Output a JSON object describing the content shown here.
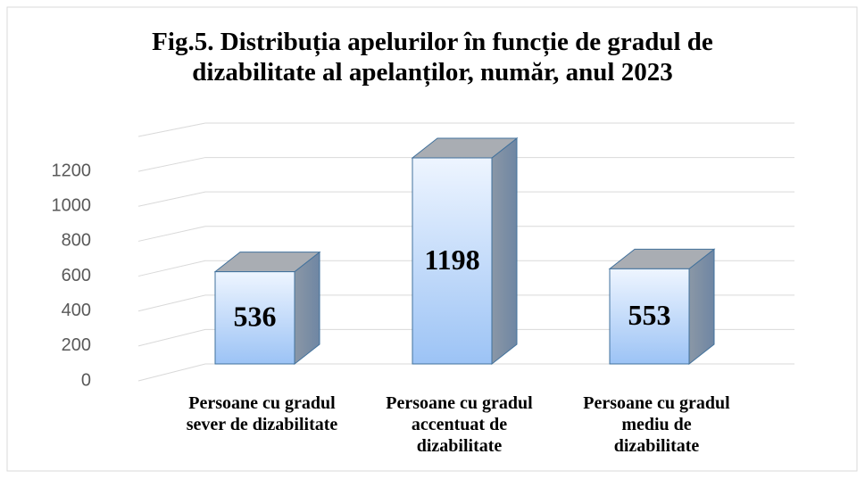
{
  "chart_data": {
    "type": "bar3d",
    "title": "Fig.5. Distribuția apelurilor în funcție de gradul de\ndizabilitate al apelanților, număr, anul 2023",
    "categories": [
      "Persoane cu gradul\nsever de dizabilitate",
      "Persoane cu gradul\naccentuat de\ndizabilitate",
      "Persoane cu gradul\nmediu de\ndizabilitate"
    ],
    "values": [
      536,
      1198,
      553
    ],
    "color": "#9cc3f5",
    "ylim": [
      0,
      1400
    ],
    "yticks": [
      0,
      200,
      400,
      600,
      800,
      1000,
      1200
    ],
    "grid": true
  }
}
